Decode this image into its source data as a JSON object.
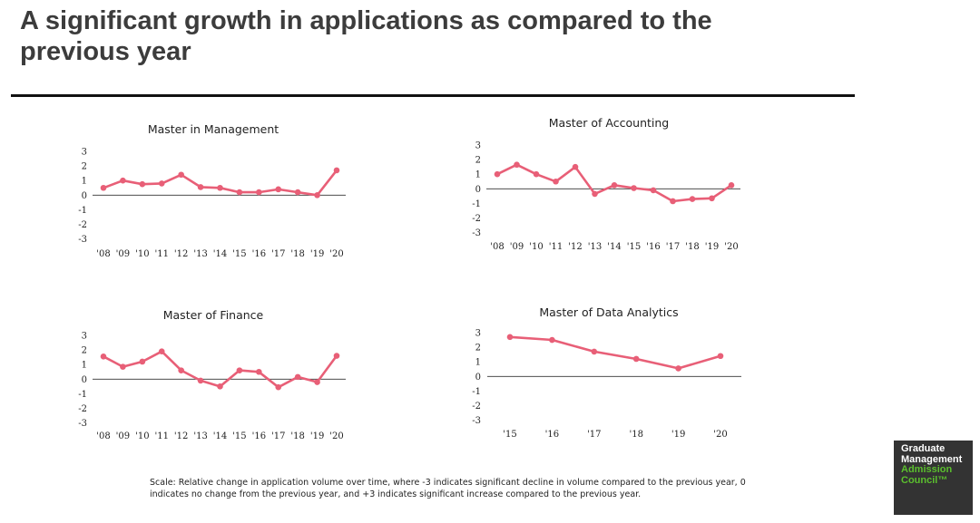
{
  "title": "A significant growth in applications as compared to the previous year",
  "scale_note": "Scale: Relative change in application volume over time, where -3 indicates significant decline in volume compared to the previous year, 0 indicates no change from the previous year, and +3 indicates significant increase compared to the previous year.",
  "logo": {
    "line1": "Graduate",
    "line2": "Management",
    "line3": "Admission",
    "line4": "Council™"
  },
  "colors": {
    "series": "#e85f77",
    "title_rule": "#111111",
    "logo_bg": "#333333",
    "logo_green": "#5bbf2e"
  },
  "chart_data": [
    {
      "type": "line",
      "title": "Master in Management",
      "categories": [
        "'08",
        "'09",
        "'10",
        "'11",
        "'12",
        "'13",
        "'14",
        "'15",
        "'16",
        "'17",
        "'18",
        "'19",
        "'20"
      ],
      "values": [
        0.5,
        1.0,
        0.75,
        0.8,
        1.4,
        0.55,
        0.5,
        0.2,
        0.2,
        0.4,
        0.2,
        0.0,
        1.7
      ],
      "yticks": [
        "3",
        "2",
        "1",
        "0",
        "-1",
        "-2",
        "-3"
      ],
      "ylim": [
        -3,
        3
      ],
      "grid": false
    },
    {
      "type": "line",
      "title": "Master of Accounting",
      "categories": [
        "'08",
        "'09",
        "'10",
        "'11",
        "'12",
        "'13",
        "'14",
        "'15",
        "'16",
        "'17",
        "'18",
        "'19",
        "'20"
      ],
      "values": [
        1.0,
        1.65,
        1.0,
        0.5,
        1.5,
        -0.35,
        0.25,
        0.05,
        -0.1,
        -0.85,
        -0.7,
        -0.65,
        0.25
      ],
      "yticks": [
        "3",
        "2",
        "1",
        "0",
        "-1",
        "-2",
        "-3"
      ],
      "ylim": [
        -3,
        3
      ],
      "grid": false
    },
    {
      "type": "line",
      "title": "Master of Finance",
      "categories": [
        "'08",
        "'09",
        "'10",
        "'11",
        "'12",
        "'13",
        "'14",
        "'15",
        "'16",
        "'17",
        "'18",
        "'19",
        "'20"
      ],
      "values": [
        1.55,
        0.85,
        1.2,
        1.9,
        0.6,
        -0.1,
        -0.5,
        0.6,
        0.5,
        -0.55,
        0.15,
        -0.2,
        1.6
      ],
      "yticks": [
        "3",
        "2",
        "1",
        "0",
        "-1",
        "-2",
        "-3"
      ],
      "ylim": [
        -3,
        3
      ],
      "grid": false
    },
    {
      "type": "line",
      "title": "Master of Data Analytics",
      "categories": [
        "'15",
        "'16",
        "'17",
        "'18",
        "'19",
        "'20"
      ],
      "values": [
        2.7,
        2.5,
        1.7,
        1.2,
        0.55,
        1.4
      ],
      "yticks": [
        "3",
        "2",
        "1",
        "0",
        "-1",
        "-2",
        "-3"
      ],
      "ylim": [
        -3,
        3
      ],
      "grid": false
    }
  ]
}
